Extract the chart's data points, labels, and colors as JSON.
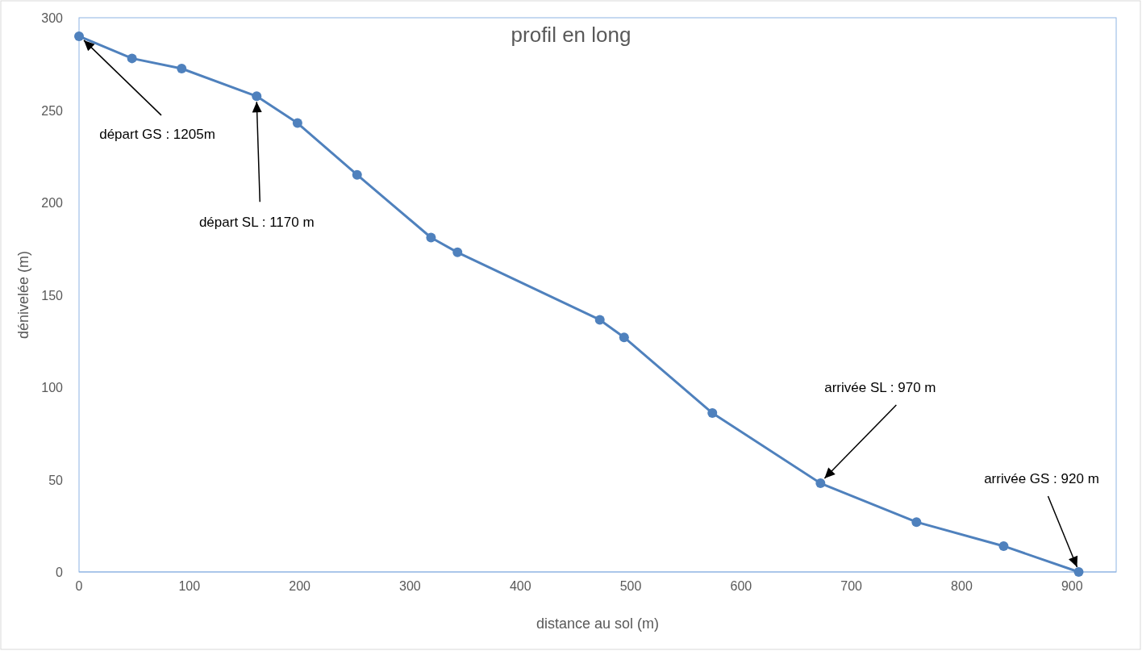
{
  "chart_data": {
    "type": "line",
    "title": "profil en long",
    "xlabel": "distance au sol (m)",
    "ylabel": "dénivelée (m)",
    "x": [
      0,
      48,
      93,
      161,
      198,
      252,
      319,
      343,
      472,
      494,
      574,
      672,
      759,
      838,
      906
    ],
    "series": [
      {
        "color": "#4f81bd",
        "values": [
          290,
          278,
          272.5,
          257.5,
          243,
          215,
          181,
          173,
          136.5,
          127,
          86,
          48,
          27,
          14,
          0
        ]
      }
    ],
    "xlim": [
      0,
      940
    ],
    "xticks": [
      0,
      100,
      200,
      300,
      400,
      500,
      600,
      700,
      800,
      900
    ],
    "ylim": [
      0,
      300
    ],
    "yticks": [
      0,
      50,
      100,
      150,
      200,
      250,
      300
    ],
    "grid": false,
    "marker": "circle",
    "line_style": "solid",
    "annotations": [
      {
        "text": "départ GS : 1205m",
        "x": 0,
        "y": 290
      },
      {
        "text": "départ SL : 1170 m",
        "x": 161,
        "y": 257.5
      },
      {
        "text": "arrivée SL : 970 m",
        "x": 672,
        "y": 48
      },
      {
        "text": "arrivée GS : 920 m",
        "x": 906,
        "y": 0
      }
    ]
  }
}
